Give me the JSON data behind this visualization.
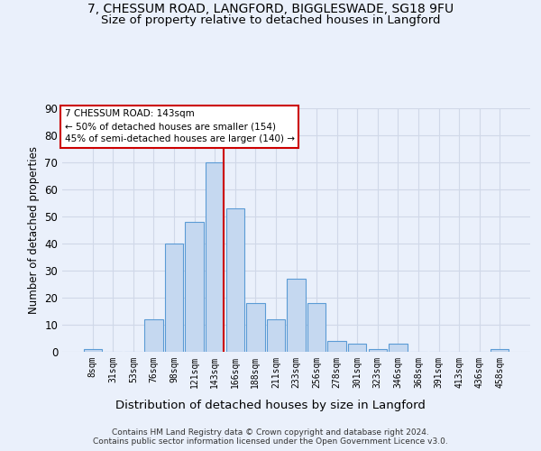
{
  "title_line1": "7, CHESSUM ROAD, LANGFORD, BIGGLESWADE, SG18 9FU",
  "title_line2": "Size of property relative to detached houses in Langford",
  "xlabel": "Distribution of detached houses by size in Langford",
  "ylabel": "Number of detached properties",
  "footer": "Contains HM Land Registry data © Crown copyright and database right 2024.\nContains public sector information licensed under the Open Government Licence v3.0.",
  "bin_labels": [
    "8sqm",
    "31sqm",
    "53sqm",
    "76sqm",
    "98sqm",
    "121sqm",
    "143sqm",
    "166sqm",
    "188sqm",
    "211sqm",
    "233sqm",
    "256sqm",
    "278sqm",
    "301sqm",
    "323sqm",
    "346sqm",
    "368sqm",
    "391sqm",
    "413sqm",
    "436sqm",
    "458sqm"
  ],
  "bar_values": [
    1,
    0,
    0,
    12,
    40,
    48,
    70,
    53,
    18,
    12,
    27,
    18,
    4,
    3,
    1,
    3,
    0,
    0,
    0,
    0,
    1
  ],
  "bar_color": "#c5d8f0",
  "bar_edge_color": "#5b9bd5",
  "red_line_index": 6,
  "annotation_title": "7 CHESSUM ROAD: 143sqm",
  "annotation_line2": "← 50% of detached houses are smaller (154)",
  "annotation_line3": "45% of semi-detached houses are larger (140) →",
  "annotation_box_color": "#ffffff",
  "annotation_box_edge": "#cc0000",
  "red_line_color": "#cc0000",
  "ylim": [
    0,
    90
  ],
  "yticks": [
    0,
    10,
    20,
    30,
    40,
    50,
    60,
    70,
    80,
    90
  ],
  "grid_color": "#d0d8e8",
  "background_color": "#eaf0fb",
  "axes_background": "#eaf0fb",
  "title_fontsize": 10,
  "subtitle_fontsize": 9.5
}
